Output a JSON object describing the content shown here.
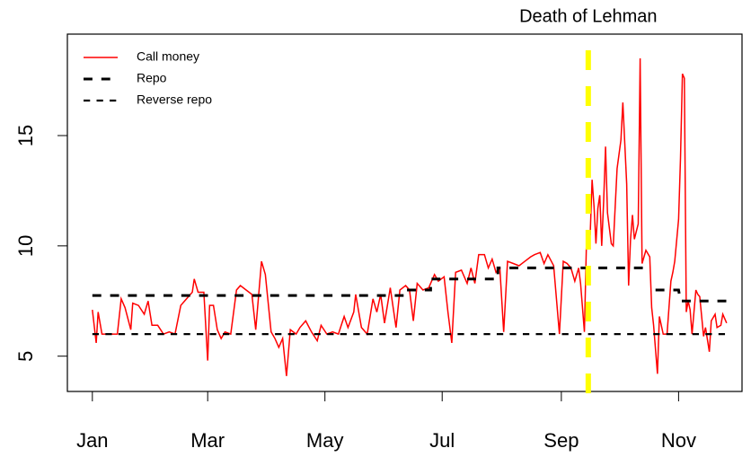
{
  "chart_data": {
    "type": "line",
    "annotation": {
      "text": "Death of Lehman",
      "x": 258,
      "color": "#ffff00"
    },
    "xlim": [
      -13,
      338
    ],
    "ylim": [
      3.4,
      19.6
    ],
    "xticks": [
      {
        "value": 0,
        "label": "Jan"
      },
      {
        "value": 60,
        "label": "Mar"
      },
      {
        "value": 121,
        "label": "May"
      },
      {
        "value": 182,
        "label": "Jul"
      },
      {
        "value": 244,
        "label": "Sep"
      },
      {
        "value": 305,
        "label": "Nov"
      }
    ],
    "yticks": [
      5,
      10,
      15
    ],
    "legend": "top-left",
    "series": [
      {
        "name": "Call money",
        "color": "#ff0000",
        "width": 1.5,
        "dash": "solid",
        "x": [
          0,
          2,
          3,
          5,
          9,
          13,
          15,
          17,
          20,
          21,
          24,
          27,
          29,
          31,
          34,
          37,
          40,
          43,
          46,
          48,
          52,
          53,
          55,
          58,
          60,
          61,
          63,
          65,
          67,
          69,
          72,
          75,
          77,
          80,
          83,
          85,
          88,
          90,
          93,
          95,
          97,
          99,
          101,
          103,
          106,
          108,
          111,
          114,
          117,
          119,
          122,
          125,
          128,
          131,
          133,
          136,
          137,
          140,
          143,
          146,
          148,
          150,
          152,
          155,
          158,
          160,
          163,
          165,
          167,
          169,
          172,
          175,
          178,
          180,
          183,
          185,
          187,
          189,
          192,
          195,
          197,
          199,
          201,
          204,
          206,
          208,
          210,
          212,
          214,
          216,
          219,
          222,
          225,
          228,
          230,
          233,
          235,
          237,
          240,
          243,
          245,
          247,
          249,
          251,
          253,
          254,
          256,
          257,
          259,
          260,
          261,
          262,
          263,
          264,
          265,
          266,
          267,
          268,
          270,
          271,
          273,
          275,
          276,
          278,
          279,
          280,
          281,
          282,
          284,
          285,
          286,
          288,
          290,
          291,
          292,
          294,
          295,
          296,
          297,
          299,
          301,
          302,
          303,
          305,
          306,
          307,
          308,
          309,
          310,
          311,
          312,
          314,
          315,
          316,
          318,
          319,
          321,
          322,
          324,
          325,
          327,
          328,
          330
        ],
        "values": [
          7.1,
          5.6,
          7.0,
          6.0,
          6.0,
          6.0,
          7.6,
          7.2,
          6.2,
          7.4,
          7.3,
          6.9,
          7.5,
          6.4,
          6.4,
          6.0,
          6.1,
          6.0,
          7.3,
          7.5,
          7.9,
          8.5,
          7.9,
          7.9,
          4.8,
          7.3,
          7.3,
          6.2,
          5.8,
          6.1,
          6.0,
          8.0,
          8.2,
          8.0,
          7.8,
          6.2,
          9.3,
          8.7,
          6.1,
          5.8,
          5.4,
          5.8,
          4.1,
          6.2,
          6.0,
          6.3,
          6.6,
          6.1,
          5.7,
          6.4,
          6.0,
          6.1,
          6.0,
          6.8,
          6.3,
          7.0,
          7.8,
          6.3,
          6.0,
          7.6,
          7.0,
          7.8,
          6.5,
          8.1,
          6.3,
          8.0,
          8.2,
          8.0,
          6.6,
          8.3,
          8.0,
          8.1,
          8.7,
          8.4,
          8.6,
          7.0,
          5.6,
          8.8,
          8.9,
          8.3,
          9.0,
          8.3,
          9.6,
          9.6,
          9.0,
          9.4,
          8.8,
          9.0,
          6.1,
          9.3,
          9.2,
          9.1,
          9.3,
          9.5,
          9.6,
          9.7,
          9.2,
          9.6,
          9.1,
          6.0,
          9.3,
          9.2,
          9.0,
          8.4,
          9.0,
          8.3,
          6.1,
          9.9,
          10.5,
          13.0,
          11.8,
          10.1,
          11.7,
          12.3,
          10.0,
          12.0,
          14.5,
          11.5,
          10.1,
          10.0,
          13.5,
          14.8,
          16.5,
          12.8,
          8.2,
          10.3,
          11.4,
          10.3,
          11.0,
          18.5,
          9.2,
          9.8,
          9.5,
          7.2,
          6.4,
          4.2,
          6.8,
          6.4,
          6.0,
          6.0,
          8.4,
          8.8,
          9.3,
          11.2,
          14.0,
          17.8,
          17.6,
          7.0,
          7.5,
          7.1,
          6.0,
          8.0,
          7.8,
          7.7,
          5.9,
          6.3,
          5.2,
          6.6,
          6.9,
          6.3,
          6.4,
          6.9,
          6.5
        ]
      },
      {
        "name": "Repo",
        "color": "#000000",
        "width": 3,
        "dash": "dashed",
        "x": [
          0,
          162,
          162,
          176,
          176,
          211,
          211,
          290,
          null,
          293,
          305,
          306,
          330
        ],
        "values": [
          7.75,
          7.75,
          8.0,
          8.0,
          8.5,
          8.5,
          9.0,
          9.0,
          null,
          8.0,
          8.0,
          7.5,
          7.5
        ]
      },
      {
        "name": "Reverse repo",
        "color": "#000000",
        "width": 2.2,
        "dash": "dashed",
        "x": [
          0,
          330
        ],
        "values": [
          6.0,
          6.0
        ]
      }
    ]
  }
}
